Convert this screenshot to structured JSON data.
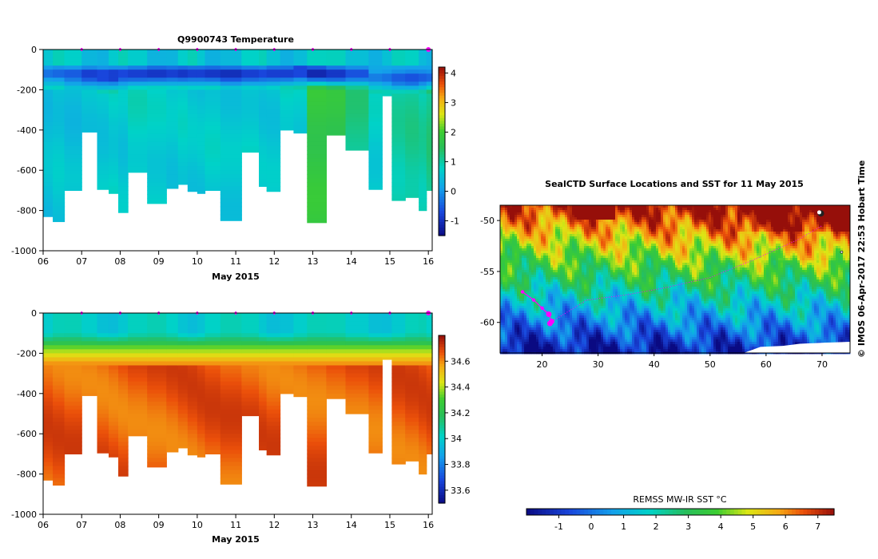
{
  "chart_data": [
    {
      "type": "heatmap",
      "title": "Q9900743  Temperature",
      "xlabel": "May 2015",
      "ylabel": "",
      "xlim": [
        6,
        16.1
      ],
      "ylim": [
        -1000,
        0
      ],
      "x_ticks": [
        "06",
        "07",
        "08",
        "09",
        "10",
        "11",
        "12",
        "13",
        "14",
        "15",
        "16"
      ],
      "y_ticks": [
        "0",
        "-200",
        "-400",
        "-600",
        "-800",
        "-1000"
      ],
      "colorbar": {
        "min": -1.5,
        "max": 4.2,
        "ticks": [
          "-1",
          "0",
          "1",
          "2",
          "3",
          "4"
        ]
      },
      "profile_markers_day": [
        7,
        8,
        9,
        10,
        11,
        12,
        13,
        14,
        15,
        16
      ],
      "casts": [
        {
          "x0": 6.0,
          "x1": 6.25,
          "depth": -830,
          "mix": -120,
          "val": 0.5,
          "c": 0.0
        },
        {
          "x0": 6.25,
          "x1": 6.55,
          "depth": -855,
          "mix": -120,
          "val": 0.6,
          "c": -0.1
        },
        {
          "x0": 6.55,
          "x1": 7.0,
          "depth": -700,
          "mix": -130,
          "val": 0.5,
          "c": -0.2
        },
        {
          "x0": 7.0,
          "x1": 7.4,
          "depth": -410,
          "mix": -130,
          "val": 0.6,
          "c": -0.5
        },
        {
          "x0": 7.4,
          "x1": 7.7,
          "depth": -695,
          "mix": -135,
          "val": 0.6,
          "c": -0.4
        },
        {
          "x0": 7.7,
          "x1": 7.95,
          "depth": -715,
          "mix": -135,
          "val": 0.7,
          "c": -0.5
        },
        {
          "x0": 7.95,
          "x1": 8.2,
          "depth": -810,
          "mix": -130,
          "val": 0.6,
          "c": -0.4
        },
        {
          "x0": 8.2,
          "x1": 8.7,
          "depth": -610,
          "mix": -125,
          "val": 0.8,
          "c": -0.5
        },
        {
          "x0": 8.7,
          "x1": 9.2,
          "depth": -765,
          "mix": -120,
          "val": 0.7,
          "c": -0.6
        },
        {
          "x0": 9.2,
          "x1": 9.5,
          "depth": -690,
          "mix": -120,
          "val": 0.6,
          "c": -0.5
        },
        {
          "x0": 9.5,
          "x1": 9.75,
          "depth": -670,
          "mix": -120,
          "val": 0.7,
          "c": -0.6
        },
        {
          "x0": 9.75,
          "x1": 10.0,
          "depth": -705,
          "mix": -120,
          "val": 0.6,
          "c": -0.5
        },
        {
          "x0": 10.0,
          "x1": 10.2,
          "depth": -715,
          "mix": -120,
          "val": 0.6,
          "c": -0.5
        },
        {
          "x0": 10.2,
          "x1": 10.6,
          "depth": -700,
          "mix": -120,
          "val": 0.7,
          "c": -0.6
        },
        {
          "x0": 10.6,
          "x1": 11.15,
          "depth": -850,
          "mix": -125,
          "val": 0.6,
          "c": -0.7
        },
        {
          "x0": 11.15,
          "x1": 11.6,
          "depth": -510,
          "mix": -125,
          "val": 0.7,
          "c": -0.5
        },
        {
          "x0": 11.6,
          "x1": 11.8,
          "depth": -680,
          "mix": -125,
          "val": 0.6,
          "c": -0.4
        },
        {
          "x0": 11.8,
          "x1": 12.15,
          "depth": -705,
          "mix": -120,
          "val": 0.6,
          "c": -0.5
        },
        {
          "x0": 12.15,
          "x1": 12.5,
          "depth": -400,
          "mix": -120,
          "val": 0.8,
          "c": -0.5
        },
        {
          "x0": 12.5,
          "x1": 12.85,
          "depth": -415,
          "mix": -115,
          "val": 0.7,
          "c": -0.4
        },
        {
          "x0": 12.85,
          "x1": 13.35,
          "depth": -860,
          "mix": -120,
          "val": 1.8,
          "c": -0.8
        },
        {
          "x0": 13.35,
          "x1": 13.85,
          "depth": -425,
          "mix": -125,
          "val": 1.7,
          "c": -0.6
        },
        {
          "x0": 13.85,
          "x1": 14.45,
          "depth": -500,
          "mix": -125,
          "val": 1.2,
          "c": -0.3
        },
        {
          "x0": 14.45,
          "x1": 14.8,
          "depth": -695,
          "mix": -140,
          "val": 0.7,
          "c": 0.1
        },
        {
          "x0": 14.8,
          "x1": 15.05,
          "depth": -230,
          "mix": -145,
          "val": 0.8,
          "c": 0.0
        },
        {
          "x0": 15.05,
          "x1": 15.4,
          "depth": -750,
          "mix": -150,
          "val": 1.0,
          "c": -0.2
        },
        {
          "x0": 15.4,
          "x1": 15.75,
          "depth": -735,
          "mix": -150,
          "val": 1.1,
          "c": -0.3
        },
        {
          "x0": 15.75,
          "x1": 15.95,
          "depth": -800,
          "mix": -145,
          "val": 1.0,
          "c": -0.2
        },
        {
          "x0": 15.95,
          "x1": 16.1,
          "depth": -700,
          "mix": -140,
          "val": 1.2,
          "c": -0.1
        }
      ]
    },
    {
      "type": "heatmap",
      "title": "",
      "xlabel": "May 2015",
      "ylabel": "",
      "xlim": [
        6,
        16.1
      ],
      "ylim": [
        -1000,
        0
      ],
      "x_ticks": [
        "06",
        "07",
        "08",
        "09",
        "10",
        "11",
        "12",
        "13",
        "14",
        "15",
        "16"
      ],
      "y_ticks": [
        "0",
        "-200",
        "-400",
        "-600",
        "-800",
        "-1000"
      ],
      "colorbar": {
        "min": 33.5,
        "max": 34.8,
        "ticks": [
          "33.6",
          "33.8",
          "34",
          "34.2",
          "34.4",
          "34.6"
        ]
      }
    },
    {
      "type": "heatmap",
      "title": "SealCTD Surface Locations and SST for 11 May 2015",
      "xlabel": "",
      "ylabel": "",
      "xlim": [
        12.5,
        75
      ],
      "ylim": [
        -63,
        -48.5
      ],
      "x_ticks": [
        "20",
        "30",
        "40",
        "50",
        "60",
        "70"
      ],
      "y_ticks": [
        "-50",
        "-55",
        "-60"
      ],
      "colorbar": {
        "label": "REMSS MW-IR SST °C",
        "min": -2,
        "max": 7.5,
        "ticks": [
          "-1",
          "0",
          "1",
          "2",
          "3",
          "4",
          "5",
          "6",
          "7"
        ]
      },
      "track": [
        [
          16.5,
          -57.0
        ],
        [
          18.5,
          -57.8
        ],
        [
          20.0,
          -58.6
        ],
        [
          21.2,
          -59.2
        ],
        [
          21.7,
          -59.9
        ],
        [
          21.4,
          -60.1
        ]
      ]
    }
  ],
  "credit": "©  IMOS 06-Apr-2017 22:53 Hobart Time"
}
